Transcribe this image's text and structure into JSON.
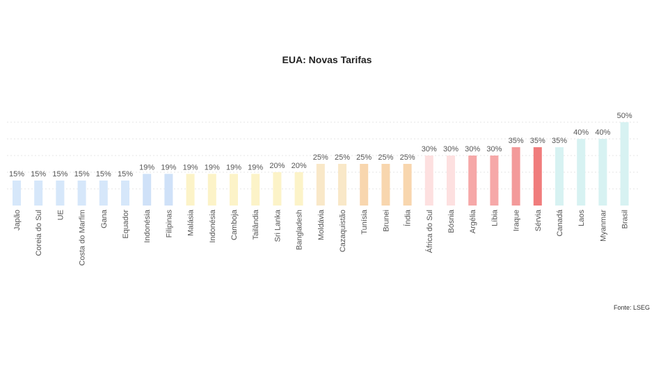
{
  "chart_data": {
    "type": "bar",
    "title": "EUA: Novas Tarifas",
    "xlabel": "",
    "ylabel": "",
    "ylim": [
      0,
      55
    ],
    "grid": true,
    "source": "Fonte: LSEG",
    "value_suffix": "%",
    "categories": [
      "Japão",
      "Coreia do Sul",
      "UE",
      "Costa do Marfim",
      "Gana",
      "Equador",
      "Indonésia",
      "Filipinas",
      "Malásia",
      "Indonésia",
      "Camboja",
      "Tailândia",
      "Sri Lanka",
      "Bangladesh",
      "Moldávia",
      "Cazaquistão",
      "Tunísia",
      "Brunei",
      "Índia",
      "África do Sul",
      "Bósnia",
      "Argélia",
      "Líbia",
      "Iraque",
      "Sérvia",
      "Canadá",
      "Laos",
      "Myanmar",
      "Brasil"
    ],
    "values": [
      15,
      15,
      15,
      15,
      15,
      15,
      19,
      19,
      19,
      19,
      19,
      19,
      20,
      20,
      25,
      25,
      25,
      25,
      25,
      30,
      30,
      30,
      30,
      35,
      35,
      35,
      40,
      40,
      50
    ],
    "colors": [
      "#d6e7fa",
      "#d6e7fa",
      "#d6e7fa",
      "#d6e7fa",
      "#d6e7fa",
      "#d6e7fa",
      "#cfe1f8",
      "#cfe1f8",
      "#fcf3c8",
      "#fcf3c8",
      "#fcf3c8",
      "#fcf3c8",
      "#fcf3c8",
      "#fcf3c8",
      "#f9e8c8",
      "#f9e8c8",
      "#f8d6ae",
      "#f8d6ae",
      "#f8d6ae",
      "#fde0e0",
      "#fde0e0",
      "#f6a8a8",
      "#f6a8a8",
      "#f39a9a",
      "#f07c7c",
      "#d7f2f2",
      "#d7f2f2",
      "#d7f2f2",
      "#d7f2f2"
    ]
  }
}
